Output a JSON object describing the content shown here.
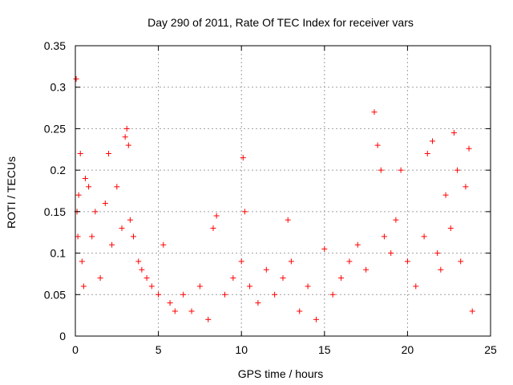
{
  "chart_data": {
    "type": "scatter",
    "title": "Day 290 of 2011, Rate Of TEC Index for receiver vars",
    "xlabel": "GPS time / hours",
    "ylabel": "ROTI / TECUs",
    "xlim": [
      0,
      25
    ],
    "ylim": [
      0,
      0.35
    ],
    "x_ticks": [
      0,
      5,
      10,
      15,
      20,
      25
    ],
    "x_tick_labels": [
      "0",
      "5",
      "10",
      "15",
      "20",
      "25"
    ],
    "y_ticks": [
      0,
      0.05,
      0.1,
      0.15,
      0.2,
      0.25,
      0.3,
      0.35
    ],
    "y_tick_labels": [
      "0",
      "0.05",
      "0.1",
      "0.15",
      "0.2",
      "0.25",
      "0.3",
      "0.35"
    ],
    "grid": true,
    "marker": "+",
    "marker_color": "#ff0000",
    "series": [
      {
        "name": "ROTI",
        "x": [
          0.05,
          0.1,
          0.15,
          0.2,
          0.3,
          0.4,
          0.5,
          0.6,
          0.8,
          1.0,
          1.2,
          1.5,
          1.8,
          2.0,
          2.2,
          2.5,
          2.8,
          3.0,
          3.1,
          3.2,
          3.3,
          3.5,
          3.8,
          4.0,
          4.3,
          4.6,
          5.0,
          5.3,
          5.7,
          6.0,
          6.5,
          7.0,
          7.5,
          8.0,
          8.3,
          8.5,
          9.0,
          9.5,
          10.0,
          10.1,
          10.2,
          10.5,
          11.0,
          11.5,
          12.0,
          12.5,
          12.8,
          13.0,
          13.5,
          14.0,
          14.5,
          15.0,
          15.5,
          16.0,
          16.5,
          17.0,
          17.5,
          18.0,
          18.2,
          18.4,
          18.6,
          19.0,
          19.3,
          19.6,
          20.0,
          20.5,
          21.0,
          21.2,
          21.5,
          21.8,
          22.0,
          22.3,
          22.6,
          22.8,
          23.0,
          23.2,
          23.5,
          23.7,
          23.9
        ],
        "y": [
          0.31,
          0.15,
          0.12,
          0.17,
          0.22,
          0.09,
          0.06,
          0.19,
          0.18,
          0.12,
          0.15,
          0.07,
          0.16,
          0.22,
          0.11,
          0.18,
          0.13,
          0.24,
          0.25,
          0.23,
          0.14,
          0.12,
          0.09,
          0.08,
          0.07,
          0.06,
          0.05,
          0.11,
          0.04,
          0.03,
          0.05,
          0.03,
          0.06,
          0.02,
          0.13,
          0.145,
          0.05,
          0.07,
          0.09,
          0.215,
          0.15,
          0.06,
          0.04,
          0.08,
          0.05,
          0.07,
          0.14,
          0.09,
          0.03,
          0.06,
          0.02,
          0.105,
          0.05,
          0.07,
          0.09,
          0.11,
          0.08,
          0.27,
          0.23,
          0.2,
          0.12,
          0.1,
          0.14,
          0.2,
          0.09,
          0.06,
          0.12,
          0.22,
          0.235,
          0.1,
          0.08,
          0.17,
          0.13,
          0.245,
          0.2,
          0.09,
          0.18,
          0.226,
          0.03
        ]
      }
    ]
  }
}
